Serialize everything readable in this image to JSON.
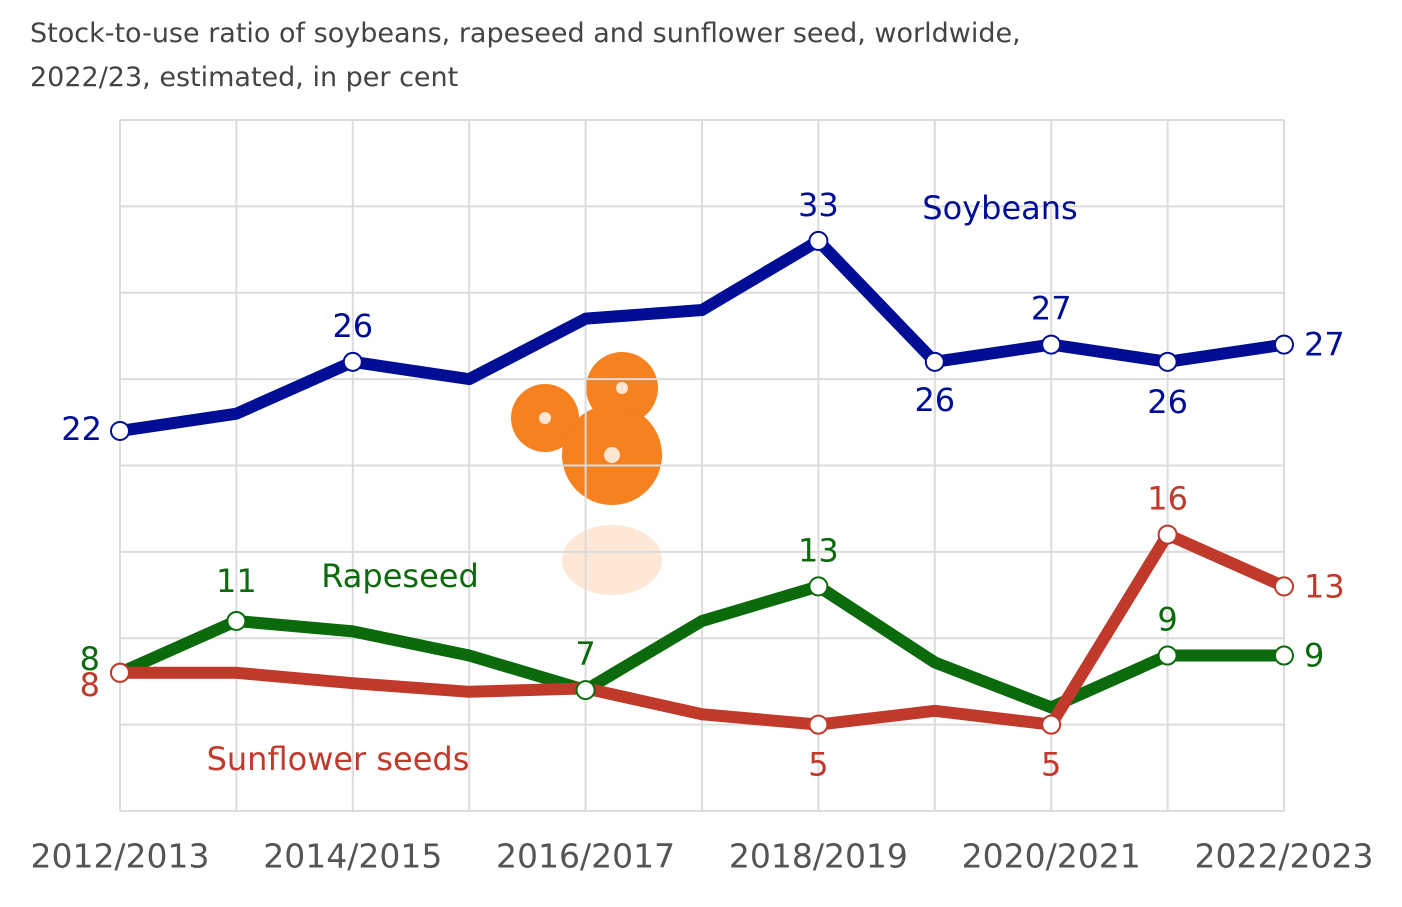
{
  "chart_data": {
    "type": "line",
    "title": "Stock-to-use ratio of soybeans, rapeseed and sunflower seed, worldwide, 2022/23, estimated, in per cent",
    "categories": [
      "2012/2013",
      null,
      "2014/2015",
      null,
      "2016/2017",
      null,
      "2018/2019",
      null,
      "2020/2021",
      null,
      "2022/2023"
    ],
    "ylim": [
      0,
      40
    ],
    "yticks": [
      0,
      5,
      10,
      15,
      20,
      25,
      30,
      35,
      40
    ],
    "grid": true,
    "series": [
      {
        "name": "Soybeans",
        "color": "#000e96",
        "values": [
          22,
          23,
          26,
          25,
          28.5,
          29,
          33,
          26,
          27,
          26,
          27
        ],
        "value_labels": [
          "22",
          null,
          "26",
          null,
          null,
          null,
          "33",
          "26",
          "27",
          "26",
          "27"
        ]
      },
      {
        "name": "Rapeseed",
        "color": "#0b6a0b",
        "values": [
          8,
          11,
          10.4,
          9,
          7,
          11,
          13,
          8.6,
          6,
          9,
          9
        ],
        "value_labels": [
          "8",
          "11",
          null,
          null,
          "7",
          null,
          "13",
          null,
          null,
          "9",
          "9"
        ]
      },
      {
        "name": "Sunflower seeds",
        "color": "#c0392b",
        "values": [
          8,
          8,
          7.4,
          6.9,
          7.1,
          5.6,
          5,
          5.8,
          5,
          16,
          13
        ],
        "value_labels": [
          "8",
          null,
          null,
          null,
          null,
          null,
          "5",
          null,
          "5",
          "16",
          "13"
        ]
      }
    ]
  }
}
